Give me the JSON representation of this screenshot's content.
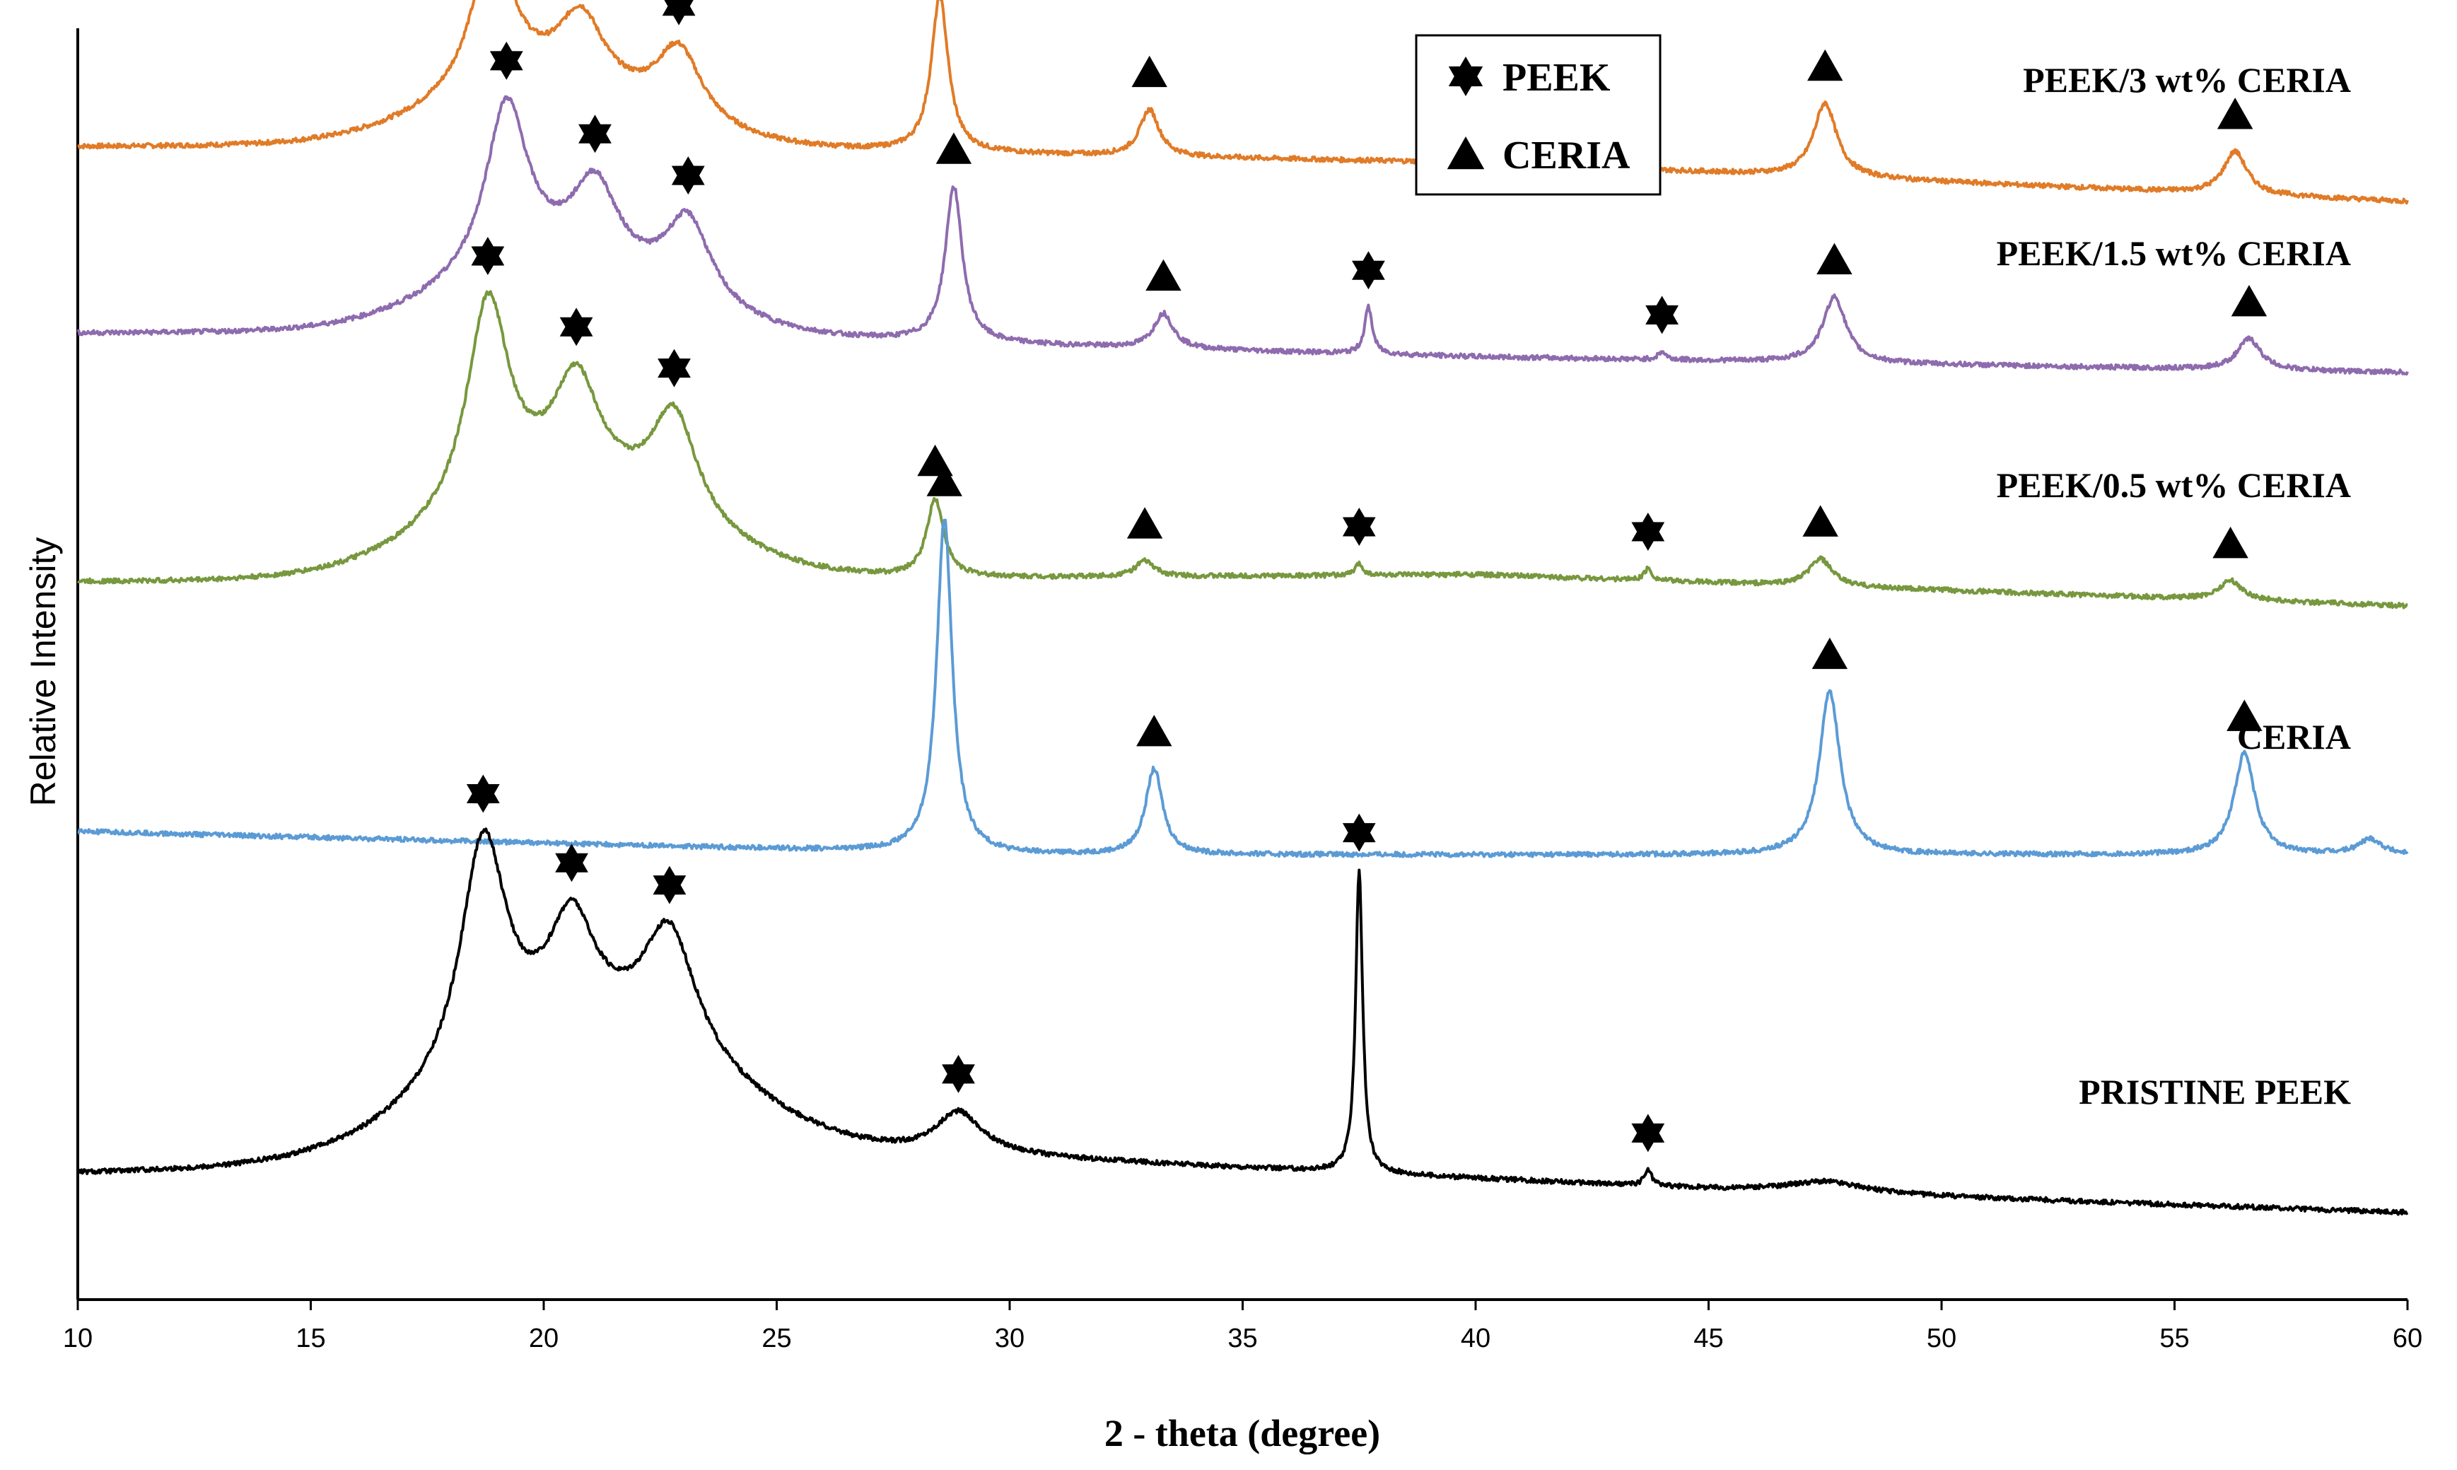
{
  "chart_data": {
    "type": "line",
    "title": "",
    "xlabel": "2 - theta (degree)",
    "ylabel": "Relative Intensity",
    "xlim": [
      10,
      60
    ],
    "xticks": [
      "10",
      "15",
      "20",
      "25",
      "30",
      "35",
      "40",
      "45",
      "50",
      "55",
      "60"
    ],
    "grid": false,
    "legend": {
      "position": "top-center",
      "entries": [
        {
          "marker": "star",
          "label": "PEEK"
        },
        {
          "marker": "triangle",
          "label": "CERIA"
        }
      ]
    },
    "series": [
      {
        "name": "PEEK/3 wt% CERIA",
        "color": "#E07B27",
        "baseline": [
          [
            10,
            7.2
          ],
          [
            20,
            7.2
          ],
          [
            40,
            7.0
          ],
          [
            60,
            6.5
          ]
        ],
        "peaks": [
          {
            "x": 18.9,
            "h": 1.9,
            "w": 0.55,
            "marker": "star"
          },
          {
            "x": 20.8,
            "h": 0.95,
            "w": 0.6,
            "marker": "star"
          },
          {
            "x": 22.9,
            "h": 0.95,
            "w": 0.6,
            "marker": "star"
          },
          {
            "x": 28.5,
            "h": 2.0,
            "w": 0.22,
            "marker": "triangle"
          },
          {
            "x": 33.0,
            "h": 0.6,
            "w": 0.25,
            "marker": "triangle"
          },
          {
            "x": 47.5,
            "h": 0.95,
            "w": 0.3,
            "marker": "triangle"
          },
          {
            "x": 56.3,
            "h": 0.55,
            "w": 0.3,
            "marker": "triangle"
          }
        ],
        "broad": [
          {
            "x": 20,
            "h": 0.7,
            "w": 3.2
          }
        ]
      },
      {
        "name": "PEEK/1.5 wt% CERIA",
        "color": "#8E6BAE",
        "baseline": [
          [
            10,
            4.8
          ],
          [
            20,
            4.8
          ],
          [
            40,
            4.5
          ],
          [
            60,
            4.3
          ]
        ],
        "peaks": [
          {
            "x": 19.2,
            "h": 2.2,
            "w": 0.55,
            "marker": "star"
          },
          {
            "x": 21.1,
            "h": 1.1,
            "w": 0.6,
            "marker": "star"
          },
          {
            "x": 23.1,
            "h": 1.1,
            "w": 0.6,
            "marker": "star"
          },
          {
            "x": 28.8,
            "h": 2.0,
            "w": 0.22,
            "marker": "triangle"
          },
          {
            "x": 33.3,
            "h": 0.45,
            "w": 0.25,
            "marker": "triangle"
          },
          {
            "x": 37.7,
            "h": 0.6,
            "w": 0.1,
            "marker": "star"
          },
          {
            "x": 44.0,
            "h": 0.1,
            "w": 0.1,
            "marker": "star"
          },
          {
            "x": 47.7,
            "h": 0.85,
            "w": 0.3,
            "marker": "triangle"
          },
          {
            "x": 56.6,
            "h": 0.4,
            "w": 0.3,
            "marker": "triangle"
          }
        ],
        "broad": [
          {
            "x": 20.3,
            "h": 0.8,
            "w": 3.2
          }
        ]
      },
      {
        "name": "PEEK/0.5 wt% CERIA",
        "color": "#77983E",
        "baseline": [
          [
            10,
            1.6
          ],
          [
            20,
            1.6
          ],
          [
            40,
            1.7
          ],
          [
            60,
            1.3
          ]
        ],
        "peaks": [
          {
            "x": 18.8,
            "h": 2.7,
            "w": 0.55,
            "marker": "star"
          },
          {
            "x": 20.7,
            "h": 1.4,
            "w": 0.6,
            "marker": "star"
          },
          {
            "x": 22.8,
            "h": 1.4,
            "w": 0.6,
            "marker": "star"
          },
          {
            "x": 28.4,
            "h": 1.0,
            "w": 0.22,
            "marker": "triangle"
          },
          {
            "x": 32.9,
            "h": 0.2,
            "w": 0.25,
            "marker": "triangle"
          },
          {
            "x": 37.5,
            "h": 0.15,
            "w": 0.1,
            "marker": "star"
          },
          {
            "x": 43.7,
            "h": 0.15,
            "w": 0.1,
            "marker": "star"
          },
          {
            "x": 47.4,
            "h": 0.35,
            "w": 0.3,
            "marker": "triangle"
          },
          {
            "x": 56.2,
            "h": 0.25,
            "w": 0.3,
            "marker": "triangle"
          }
        ],
        "broad": [
          {
            "x": 20.5,
            "h": 1.1,
            "w": 3.5
          }
        ]
      },
      {
        "name": "CERIA",
        "color": "#5B9BD5",
        "baseline": [
          [
            10,
            -1.6
          ],
          [
            30,
            -1.9
          ],
          [
            60,
            -1.9
          ]
        ],
        "peaks": [
          {
            "x": 28.6,
            "h": 4.3,
            "w": 0.2,
            "marker": "triangle"
          },
          {
            "x": 33.1,
            "h": 1.1,
            "w": 0.22,
            "marker": "triangle"
          },
          {
            "x": 47.6,
            "h": 2.1,
            "w": 0.27,
            "marker": "triangle"
          },
          {
            "x": 56.5,
            "h": 1.3,
            "w": 0.27,
            "marker": "triangle"
          },
          {
            "x": 59.2,
            "h": 0.2,
            "w": 0.3,
            "marker": ""
          }
        ],
        "broad": []
      },
      {
        "name": "PRISTINE PEEK",
        "color": "#000000",
        "baseline": [
          [
            10,
            -6.0
          ],
          [
            30,
            -5.8
          ],
          [
            45,
            -6.2
          ],
          [
            60,
            -6.5
          ]
        ],
        "peaks": [
          {
            "x": 18.7,
            "h": 3.0,
            "w": 0.6,
            "marker": "star"
          },
          {
            "x": 20.6,
            "h": 1.4,
            "w": 0.6,
            "marker": "star"
          },
          {
            "x": 22.7,
            "h": 1.6,
            "w": 0.7,
            "marker": "star"
          },
          {
            "x": 28.9,
            "h": 0.55,
            "w": 0.6,
            "marker": "star"
          },
          {
            "x": 37.5,
            "h": 3.9,
            "w": 0.09,
            "marker": "star"
          },
          {
            "x": 43.7,
            "h": 0.2,
            "w": 0.1,
            "marker": "star"
          },
          {
            "x": 47.5,
            "h": 0.15,
            "w": 1.0,
            "marker": ""
          }
        ],
        "broad": [
          {
            "x": 21,
            "h": 1.6,
            "w": 4.0
          }
        ]
      }
    ]
  }
}
